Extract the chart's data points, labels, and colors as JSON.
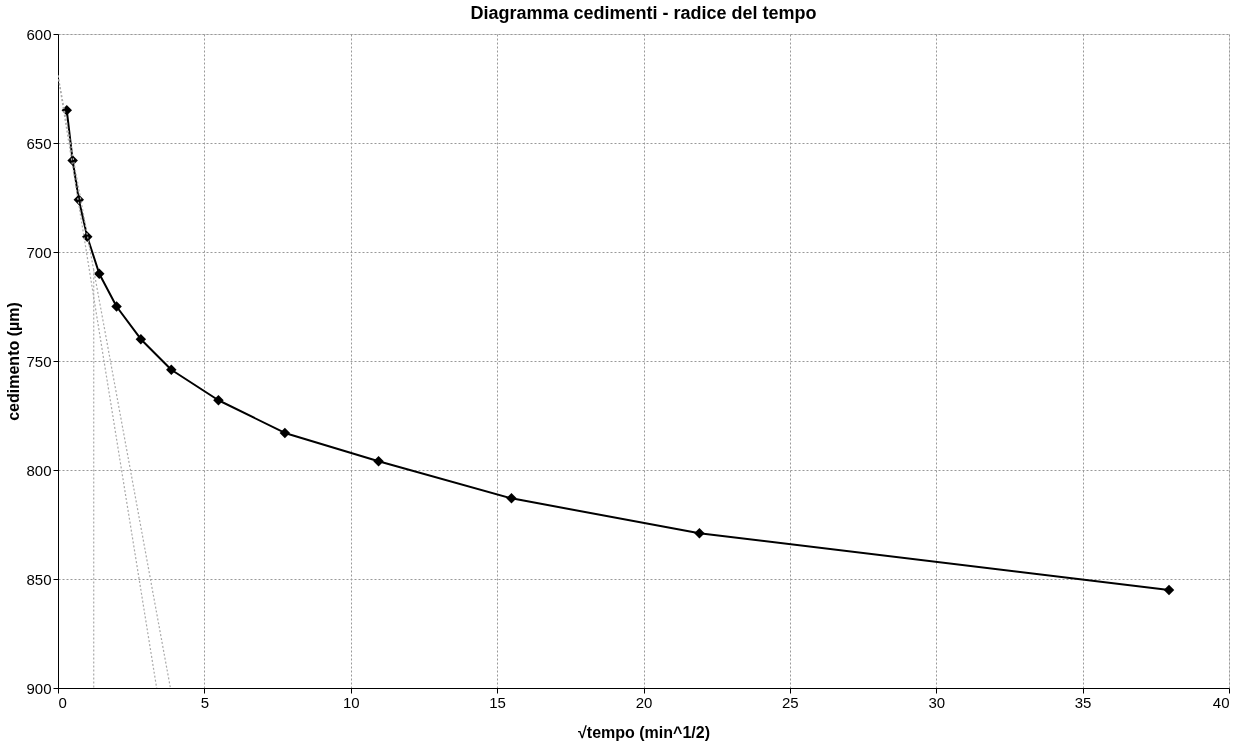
{
  "chart_data": {
    "type": "line",
    "title": "Diagramma cedimenti - radice del tempo",
    "xlabel": "√tempo  (min^1/2)",
    "ylabel": "cedimento  (µm)",
    "xlim": [
      0,
      40
    ],
    "xticks": [
      0,
      5,
      10,
      15,
      20,
      25,
      30,
      35,
      40
    ],
    "ylim": [
      900,
      600
    ],
    "yticks": [
      600,
      650,
      700,
      750,
      800,
      850,
      900
    ],
    "grid": true,
    "series": [
      {
        "color": "#000000",
        "marker": "diamond",
        "line_style": "solid",
        "x": [
          0.3,
          0.5,
          0.71,
          1.0,
          1.41,
          2.0,
          2.83,
          3.87,
          5.48,
          7.75,
          10.95,
          15.49,
          21.91,
          37.95
        ],
        "values": [
          635,
          658,
          676,
          693,
          710,
          725,
          740,
          754,
          768,
          783,
          796,
          813,
          829,
          855
        ]
      },
      {
        "color": "#aaaaaa",
        "marker": "none",
        "line_style": "dotted",
        "x": [
          0,
          3.37
        ],
        "values": [
          619,
          900
        ]
      },
      {
        "color": "#aaaaaa",
        "marker": "none",
        "line_style": "dotted",
        "x": [
          0,
          3.84
        ],
        "values": [
          619,
          900
        ]
      },
      {
        "color": "#aaaaaa",
        "marker": "none",
        "line_style": "dotted",
        "x": [
          1.22,
          1.22
        ],
        "values": [
          708,
          900
        ]
      }
    ]
  }
}
